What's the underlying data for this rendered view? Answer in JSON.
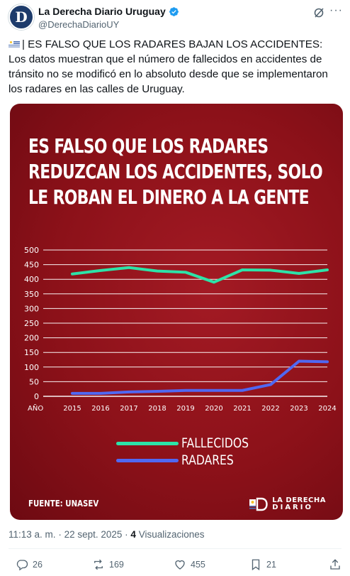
{
  "account": {
    "name": "La Derecha Diario Uruguay",
    "handle": "@DerechaDiarioUY",
    "avatar_letter": "D",
    "verified_color": "#1d9bf0"
  },
  "tweet": {
    "text": "| ES FALSO QUE LOS RADARES BAJAN LOS ACCIDENTES: Los datos muestran que el número de fallecidos en accidentes de tránsito no se modificó en lo absoluto desde que se implementaron los radares en las calles de Uruguay.",
    "flag": "uruguay-flag"
  },
  "card": {
    "headline": "ES FALSO QUE LOS RADARES REDUZCAN LOS ACCIDENTES, SOLO LE ROBAN EL DINERO A LA GENTE",
    "source": "FUENTE: UNASEV",
    "brand_line1": "LA DERECHA",
    "brand_line2": "DIARIO",
    "background": "#8c1119"
  },
  "chart_data": {
    "type": "line",
    "x_axis_label": "AÑO",
    "categories": [
      "2015",
      "2016",
      "2017",
      "2018",
      "2019",
      "2020",
      "2021",
      "2022",
      "2023",
      "2024"
    ],
    "y_ticks": [
      "0",
      "50",
      "100",
      "150",
      "200",
      "250",
      "300",
      "350",
      "400",
      "450",
      "500"
    ],
    "ylim": [
      0,
      500
    ],
    "grid": true,
    "series": [
      {
        "name": "FALLECIDOS",
        "color": "#2de3a8",
        "values": [
          418,
          430,
          440,
          428,
          424,
          390,
          432,
          431,
          420,
          432
        ]
      },
      {
        "name": "RADARES",
        "color": "#5068f2",
        "values": [
          10,
          10,
          15,
          17,
          20,
          20,
          20,
          40,
          120,
          118
        ]
      }
    ],
    "legend_position": "bottom-center"
  },
  "footer": {
    "time": "11:13 a. m.",
    "date": "22 sept. 2025",
    "views_count": "4",
    "views_label": "Visualizaciones"
  },
  "actions": {
    "replies": "26",
    "reposts": "169",
    "likes": "455",
    "bookmarks": "21"
  }
}
